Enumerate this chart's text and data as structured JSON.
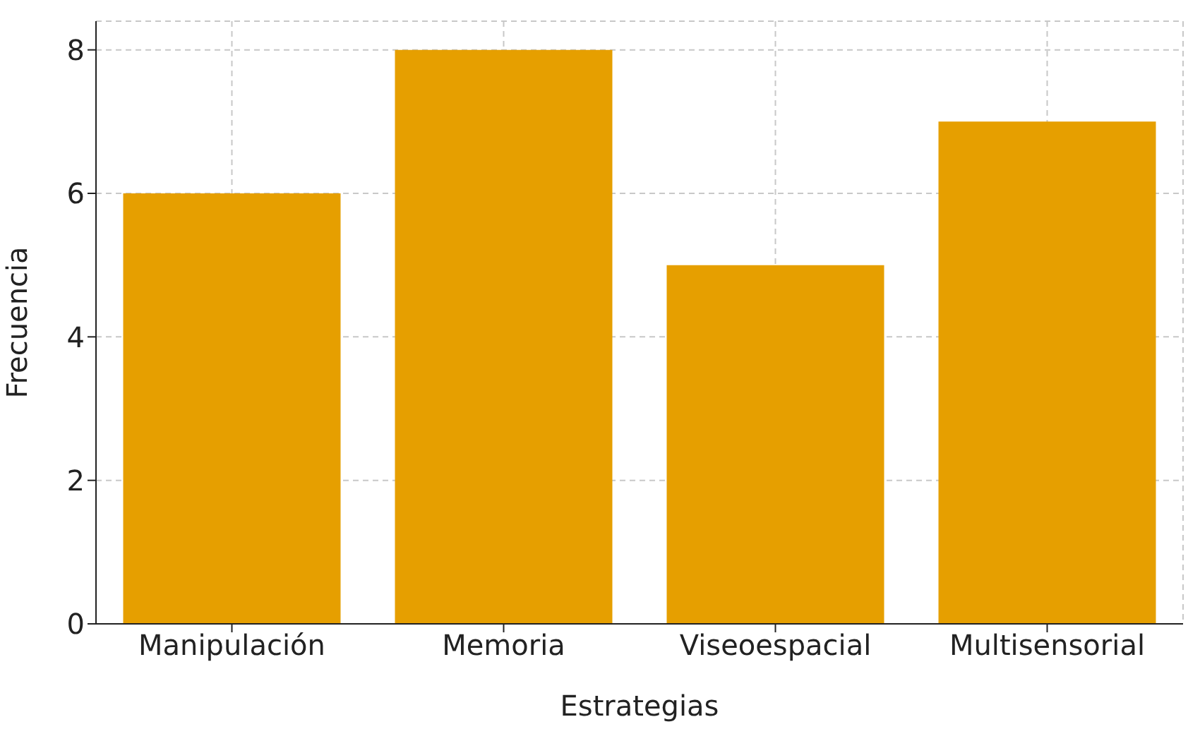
{
  "chart_data": {
    "type": "bar",
    "xlabel": "Estrategias",
    "ylabel": "Frecuencia",
    "categories": [
      "Manipulación",
      "Memoria",
      "Viseoespacial",
      "Multisensorial"
    ],
    "values": [
      6,
      8,
      5,
      7
    ],
    "color": "#e69f00",
    "ylim": [
      0,
      8.4
    ],
    "yticks": [
      0,
      2,
      4,
      6,
      8
    ],
    "grid": true
  }
}
